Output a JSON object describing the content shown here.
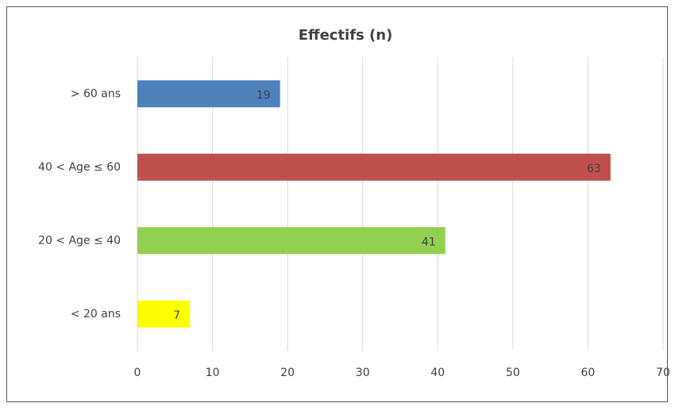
{
  "chart_data": {
    "type": "hbar",
    "title": "Effectifs (n)",
    "categories": [
      "> 60 ans",
      "40 < Age ≤ 60",
      "20 < Age ≤ 40",
      "< 20 ans"
    ],
    "values": [
      19,
      63,
      41,
      7
    ],
    "colors": [
      "#4f81bd",
      "#c0504d",
      "#92d050",
      "#ffff00"
    ],
    "xlim": [
      0,
      70
    ],
    "xticks": [
      0,
      10,
      20,
      30,
      40,
      50,
      60,
      70
    ],
    "grid": true
  }
}
